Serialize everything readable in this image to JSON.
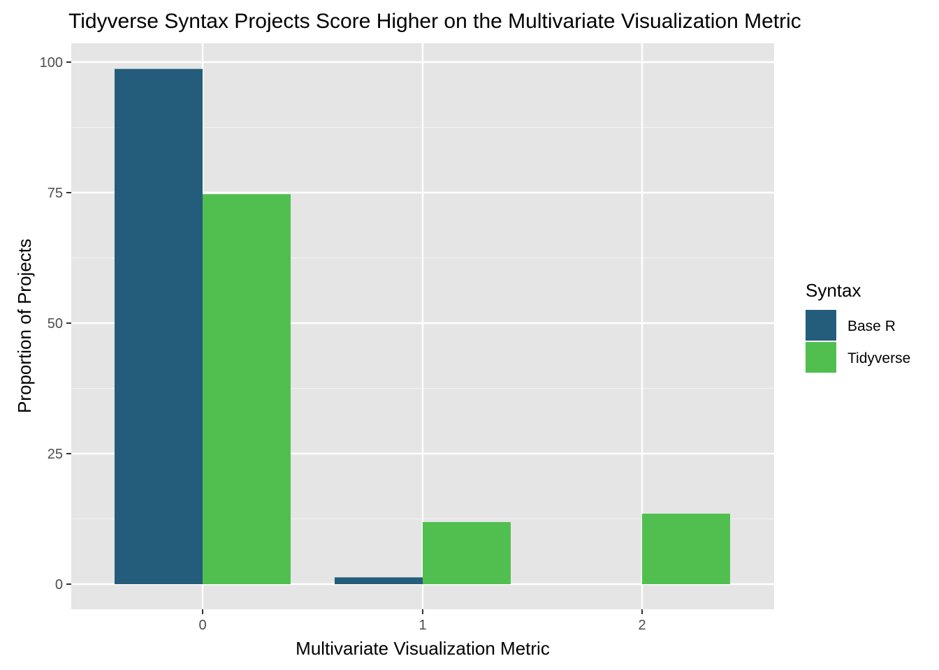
{
  "chart_data": {
    "type": "bar",
    "title": "Tidyverse Syntax Projects Score Higher on the Multivariate Visualization Metric",
    "xlabel": "Multivariate Visualization Metric",
    "ylabel": "Proportion of Projects",
    "categories": [
      "0",
      "1",
      "2"
    ],
    "series": [
      {
        "name": "Base R",
        "color": "#245d7b",
        "values": [
          98.7,
          1.3,
          0
        ]
      },
      {
        "name": "Tidyverse",
        "color": "#51bf4f",
        "values": [
          74.7,
          11.9,
          13.5
        ]
      }
    ],
    "yticks": [
      0,
      25,
      50,
      75,
      100
    ],
    "ylim": [
      -5,
      103.5
    ],
    "legend": {
      "title": "Syntax",
      "position": "right"
    },
    "grid": true,
    "panel_background": "#e5e5e5"
  }
}
